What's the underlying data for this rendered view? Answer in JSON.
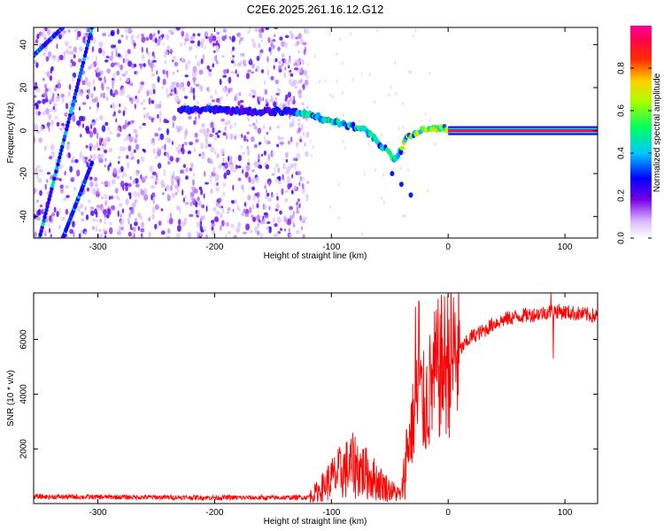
{
  "title": "C2E6.2025.261.16.12.G12",
  "chart_data": [
    {
      "type": "heatmap",
      "xlabel": "Height of straight line (km)",
      "ylabel": "Frequency (Hz)",
      "xlim": [
        -355,
        128
      ],
      "ylim": [
        -50,
        48
      ],
      "xticks": [
        -300,
        -200,
        -100,
        0,
        100
      ],
      "yticks": [
        -40,
        -20,
        0,
        20,
        40
      ],
      "colorbar": {
        "label": "Normalized spectral amplitude",
        "range": [
          0.0,
          1.0
        ],
        "ticks": [
          0.0,
          0.2,
          0.4,
          0.6,
          0.8
        ],
        "colormap": "rainbow (white-purple-blue-cyan-green-yellow-red-magenta)"
      },
      "features": [
        {
          "name": "main-trace",
          "points": [
            [
              -230,
              10
            ],
            [
              -175,
              9
            ],
            [
              -130,
              9
            ],
            [
              -110,
              6
            ],
            [
              -90,
              3
            ],
            [
              -70,
              0
            ],
            [
              -55,
              -8
            ],
            [
              -45,
              -14
            ],
            [
              -35,
              -3
            ],
            [
              -20,
              1
            ],
            [
              0,
              1
            ],
            [
              50,
              0
            ],
            [
              128,
              0
            ]
          ]
        },
        {
          "name": "steady-carrier",
          "x_range": [
            0,
            128
          ],
          "freq": 0,
          "amplitude": 0.95
        },
        {
          "name": "diagonal-stripe-1",
          "from": [
            -355,
            35
          ],
          "to": [
            -330,
            48
          ]
        },
        {
          "name": "diagonal-stripe-2",
          "from": [
            -350,
            -50
          ],
          "to": [
            -305,
            48
          ]
        },
        {
          "name": "diagonal-stripe-3",
          "from": [
            -330,
            -50
          ],
          "to": [
            -305,
            -15
          ]
        },
        {
          "name": "branch",
          "points": [
            [
              -48,
              -20
            ],
            [
              -40,
              -25
            ],
            [
              -32,
              -30
            ]
          ]
        }
      ],
      "noise_x_range": [
        -355,
        -120
      ]
    },
    {
      "type": "line",
      "xlabel": "Height of straight line (km)",
      "ylabel": "SNR (10 * v/v)",
      "xlim": [
        -355,
        128
      ],
      "ylim": [
        0,
        7700
      ],
      "xticks": [
        -300,
        -200,
        -100,
        0,
        100
      ],
      "yticks": [
        2000,
        4000,
        6000
      ],
      "color": "#ff0000",
      "x": [
        -355,
        -300,
        -250,
        -200,
        -150,
        -120,
        -110,
        -100,
        -90,
        -80,
        -70,
        -60,
        -50,
        -40,
        -35,
        -30,
        -25,
        -20,
        -15,
        -10,
        -5,
        0,
        10,
        20,
        30,
        40,
        50,
        60,
        70,
        80,
        90,
        100,
        110,
        128
      ],
      "values": [
        250,
        240,
        230,
        220,
        210,
        230,
        500,
        900,
        1200,
        1400,
        1100,
        800,
        500,
        300,
        2000,
        3000,
        4000,
        3500,
        4200,
        4800,
        5000,
        5200,
        5600,
        6100,
        6300,
        6600,
        6750,
        6850,
        6900,
        6950,
        7050,
        7000,
        6950,
        6850
      ],
      "spikes": [
        [
          -28,
          7200
        ],
        [
          -25,
          7400
        ],
        [
          88,
          7700
        ],
        [
          90,
          5300
        ]
      ]
    }
  ]
}
